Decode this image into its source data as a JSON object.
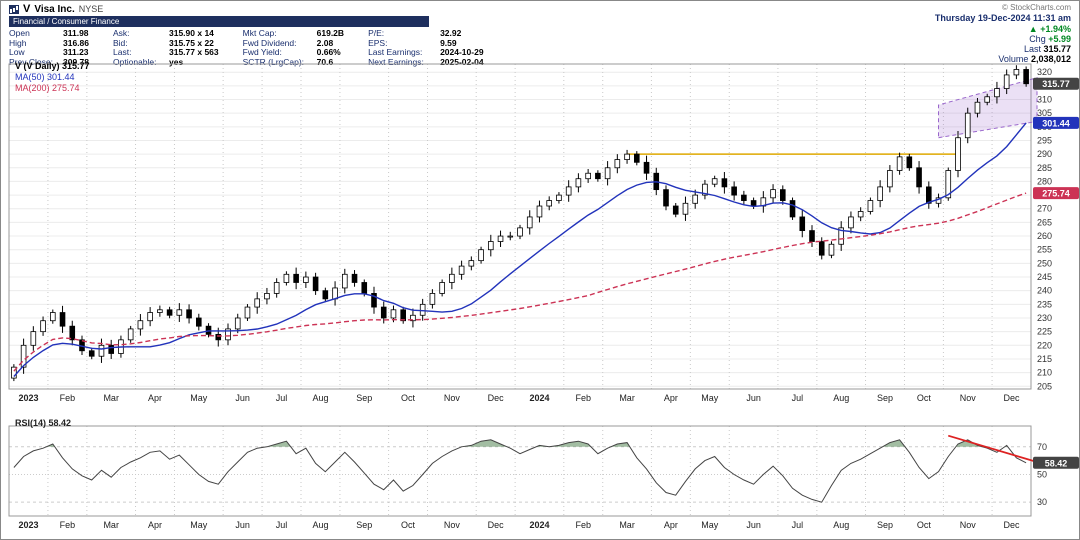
{
  "header": {
    "symbol": "V",
    "company": "Visa Inc.",
    "exchange": "NYSE",
    "sector_line": "Financial / Consumer Finance",
    "copyright": "© StockCharts.com",
    "datetime": "Thursday 19-Dec-2024 11:31 am",
    "quote": {
      "c1": [
        {
          "l": "Open",
          "v": "311.98"
        },
        {
          "l": "High",
          "v": "316.86"
        },
        {
          "l": "Low",
          "v": "311.23"
        },
        {
          "l": "Prev Close:",
          "v": "309.78"
        }
      ],
      "c2": [
        {
          "l": "Ask:",
          "v": "315.90 x 14"
        },
        {
          "l": "Bid:",
          "v": "315.75 x 22"
        },
        {
          "l": "Last:",
          "v": "315.77 x 563"
        },
        {
          "l": "Optionable:",
          "v": "yes"
        }
      ],
      "c3": [
        {
          "l": "Mkt Cap:",
          "v": "619.2B"
        },
        {
          "l": "Fwd Dividend:",
          "v": "2.08"
        },
        {
          "l": "Fwd Yield:",
          "v": "0.66%"
        },
        {
          "l": "SCTR (LrgCap):",
          "v": "70.6"
        }
      ],
      "c4": [
        {
          "l": "P/E:",
          "v": "32.92"
        },
        {
          "l": "EPS:",
          "v": "9.59"
        },
        {
          "l": "Last Earnings:",
          "v": "2024-10-29"
        },
        {
          "l": "Next Earnings:",
          "v": "2025-02-04"
        }
      ]
    },
    "change": {
      "arrow": "▲",
      "pct": "+1.94%",
      "chg_label": "Chg",
      "chg": "+5.99",
      "last_label": "Last",
      "last": "315.77",
      "volume_label": "Volume",
      "volume": "2,038,012"
    }
  },
  "price_panel": {
    "legend_main": "V (V Daily) 315.77",
    "legend_ma50": "MA(50) 301.44",
    "legend_ma200": "MA(200) 275.74"
  },
  "rsi_panel": {
    "legend": "RSI(14) 58.42"
  },
  "chart_data": [
    {
      "type": "candlestick",
      "title": "V (V Daily)",
      "last": 315.77,
      "ylim": [
        204,
        323
      ],
      "ytick_step": 5,
      "months": [
        {
          "label": "2023",
          "weeks": 4
        },
        {
          "label": "Feb",
          "weeks": 4
        },
        {
          "label": "Mar",
          "weeks": 5
        },
        {
          "label": "Apr",
          "weeks": 4
        },
        {
          "label": "May",
          "weeks": 5
        },
        {
          "label": "Jun",
          "weeks": 4
        },
        {
          "label": "Jul",
          "weeks": 4
        },
        {
          "label": "Aug",
          "weeks": 4
        },
        {
          "label": "Sep",
          "weeks": 5
        },
        {
          "label": "Oct",
          "weeks": 4
        },
        {
          "label": "Nov",
          "weeks": 5
        },
        {
          "label": "Dec",
          "weeks": 4
        },
        {
          "label": "2024",
          "weeks": 5
        },
        {
          "label": "Feb",
          "weeks": 4
        },
        {
          "label": "Mar",
          "weeks": 5
        },
        {
          "label": "Apr",
          "weeks": 4
        },
        {
          "label": "May",
          "weeks": 4
        },
        {
          "label": "Jun",
          "weeks": 5
        },
        {
          "label": "Jul",
          "weeks": 4
        },
        {
          "label": "Aug",
          "weeks": 5
        },
        {
          "label": "Sep",
          "weeks": 4
        },
        {
          "label": "Oct",
          "weeks": 4
        },
        {
          "label": "Nov",
          "weeks": 5
        },
        {
          "label": "Dec",
          "weeks": 4
        }
      ],
      "closes": [
        212,
        220,
        225,
        229,
        232,
        227,
        222,
        218,
        216,
        220,
        217,
        222,
        226,
        229,
        232,
        233,
        231,
        233,
        230,
        227,
        224,
        222,
        226,
        230,
        234,
        237,
        239,
        243,
        246,
        243,
        245,
        240,
        237,
        241,
        246,
        243,
        239,
        234,
        230,
        233,
        229,
        231,
        235,
        239,
        243,
        246,
        249,
        251,
        255,
        258,
        260,
        260,
        263,
        267,
        271,
        273,
        275,
        278,
        281,
        283,
        281,
        285,
        288,
        290,
        287,
        283,
        277,
        271,
        268,
        272,
        275,
        279,
        281,
        278,
        275,
        273,
        271,
        274,
        277,
        273,
        267,
        262,
        258,
        253,
        257,
        263,
        267,
        269,
        273,
        278,
        284,
        289,
        285,
        278,
        272,
        274,
        284,
        296,
        305,
        309,
        311,
        314,
        319,
        321,
        315.77
      ],
      "overlays": {
        "ma50": {
          "label": "MA(50)",
          "window_weeks": 10,
          "last": 301.44,
          "color": "#2233bb"
        },
        "ma200": {
          "label": "MA(200)",
          "window_weeks": 60,
          "last": 275.74,
          "color": "#cc3355"
        },
        "resistance_line": {
          "value": 290,
          "from_index": 63,
          "to_index": 97,
          "color": "#dfa900"
        },
        "channel": {
          "points": [
            [
              95,
              296
            ],
            [
              105.7,
              302
            ],
            [
              105.7,
              318
            ],
            [
              95,
              308
            ]
          ],
          "color": "#9966cc"
        }
      },
      "axis_tags": [
        {
          "value": 315.77,
          "color": "#444444"
        },
        {
          "value": 301.44,
          "color": "#2233bb"
        },
        {
          "value": 275.74,
          "color": "#cc3355"
        }
      ]
    },
    {
      "type": "line",
      "title": "RSI(14)",
      "last": 58.42,
      "ylim": [
        20,
        85
      ],
      "yticks": [
        30,
        50,
        70
      ],
      "overbought": 70,
      "values": [
        55,
        63,
        67,
        69,
        72,
        62,
        54,
        49,
        46,
        53,
        48,
        55,
        59,
        62,
        66,
        67,
        61,
        64,
        57,
        50,
        45,
        43,
        52,
        59,
        66,
        69,
        70,
        72,
        74,
        65,
        69,
        58,
        52,
        59,
        66,
        59,
        51,
        43,
        39,
        46,
        38,
        42,
        50,
        58,
        63,
        67,
        70,
        71,
        74,
        75,
        72,
        69,
        65,
        68,
        71,
        70,
        71,
        73,
        74,
        72,
        65,
        69,
        72,
        73,
        62,
        54,
        44,
        37,
        35,
        45,
        54,
        60,
        63,
        55,
        50,
        46,
        43,
        50,
        56,
        49,
        40,
        35,
        32,
        30,
        42,
        53,
        58,
        61,
        65,
        69,
        73,
        75,
        66,
        55,
        47,
        52,
        63,
        72,
        75,
        71,
        69,
        66,
        71,
        62,
        58.42
      ],
      "trendline": {
        "from": [
          96,
          78
        ],
        "to": [
          105.5,
          59
        ],
        "color": "#dd2222"
      },
      "axis_tag": {
        "value": 58.42,
        "color": "#444444"
      }
    }
  ]
}
